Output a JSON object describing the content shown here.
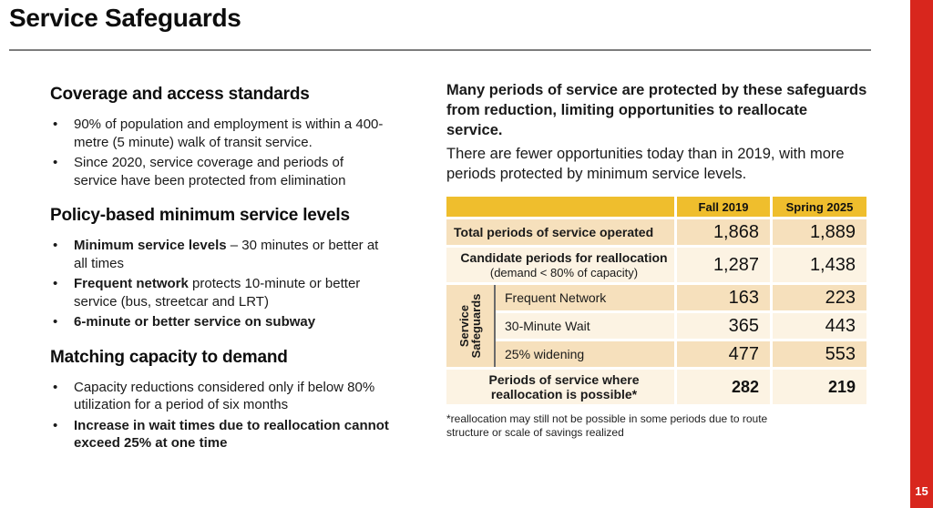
{
  "slide": {
    "title": "Service Safeguards",
    "page_number": "15",
    "colors": {
      "accent_red": "#d8261d",
      "table_gold": "#efbe2d",
      "row_tan": "#f6e0bc",
      "row_cream": "#fcf3e3"
    }
  },
  "left": {
    "sections": [
      {
        "heading": "Coverage and access standards",
        "bullets": [
          {
            "bold": "",
            "text": "90% of population and employment is within a 400-metre (5 minute) walk of transit service."
          },
          {
            "bold": "",
            "text": "Since 2020, service coverage and periods of service have been protected from elimination"
          }
        ]
      },
      {
        "heading": "Policy-based minimum service levels",
        "bullets": [
          {
            "bold": "Minimum service levels",
            "text": " – 30 minutes or better at all times"
          },
          {
            "bold": "Frequent network",
            "text": " protects 10-minute or better service (bus, streetcar and LRT)"
          },
          {
            "bold": "6-minute or better service on subway",
            "text": ""
          }
        ]
      },
      {
        "heading": "Matching capacity to demand",
        "bullets": [
          {
            "bold": "",
            "text": "Capacity reductions considered only if below 80% utilization for a period of six months"
          },
          {
            "bold": "Increase in wait times due to reallocation cannot exceed 25% at one time",
            "text": ""
          }
        ]
      }
    ]
  },
  "right": {
    "lead_bold": "Many periods of service are protected by these safeguards from reduction, limiting opportunities to reallocate service.",
    "lead_text": "There are fewer opportunities today than in 2019, with more periods protected by minimum service levels.",
    "footnote": "*reallocation may still not be possible in some periods due to route structure or scale of savings realized"
  },
  "table": {
    "header": [
      "Fall 2019",
      "Spring 2025"
    ],
    "row_total": {
      "label": "Total periods of service operated",
      "fall": "1,868",
      "spring": "1,889"
    },
    "row_candidate": {
      "label": "Candidate periods for reallocation",
      "sublabel": "(demand < 80% of capacity)",
      "fall": "1,287",
      "spring": "1,438"
    },
    "group": {
      "label_line1": "Service",
      "label_line2": "Safeguards",
      "rows": [
        {
          "label": "Frequent Network",
          "fall": "163",
          "spring": "223"
        },
        {
          "label": "30-Minute Wait",
          "fall": "365",
          "spring": "443"
        },
        {
          "label": "25% widening",
          "fall": "477",
          "spring": "553"
        }
      ]
    },
    "row_possible": {
      "label_line1": "Periods of service where",
      "label_line2": "reallocation is possible*",
      "fall": "282",
      "spring": "219"
    }
  }
}
